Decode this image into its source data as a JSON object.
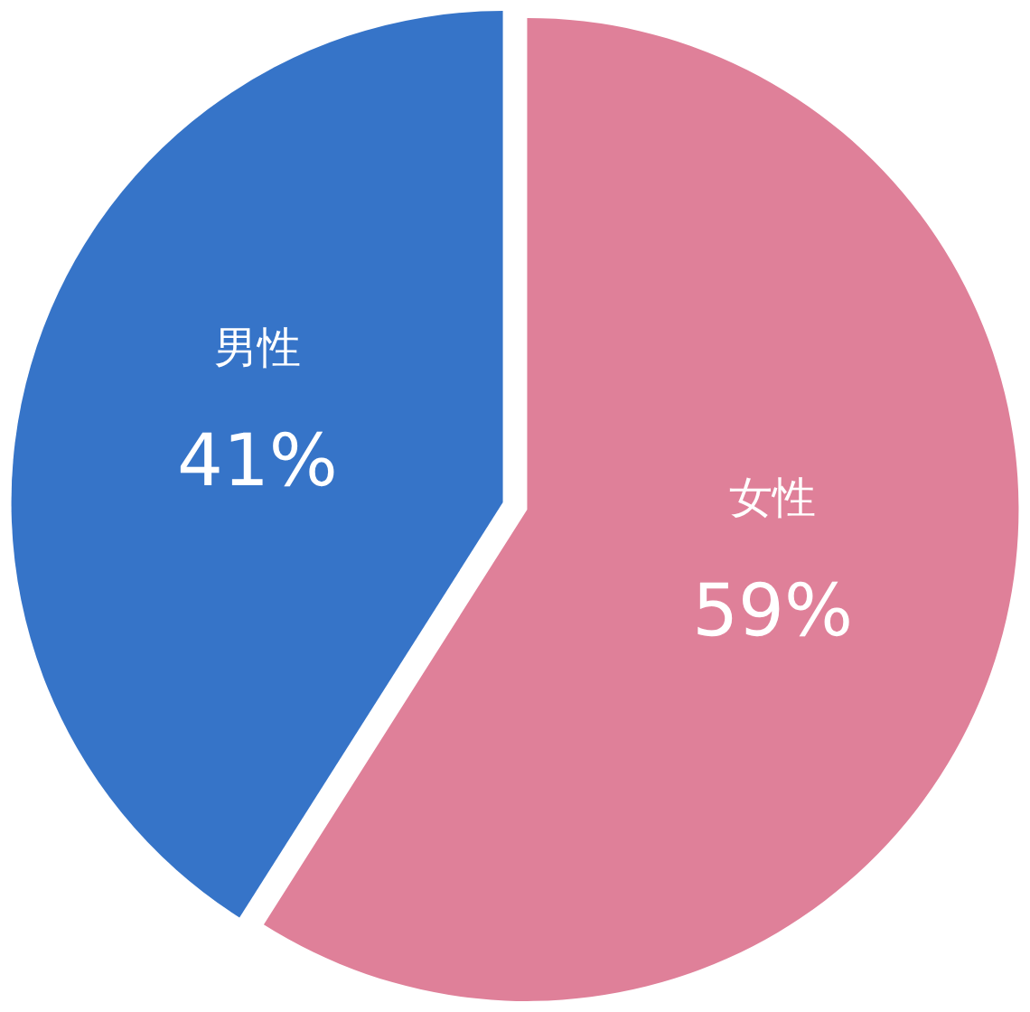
{
  "chart_data": {
    "type": "pie",
    "categories": [
      "女性",
      "男性"
    ],
    "values": [
      59,
      41
    ],
    "colors": [
      "#df8099",
      "#3674c8"
    ],
    "value_labels": [
      "59%",
      "41%"
    ]
  }
}
